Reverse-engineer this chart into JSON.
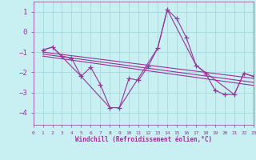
{
  "background_color": "#c8eff1",
  "grid_color": "#a0dce0",
  "line_color": "#993399",
  "xlim": [
    0,
    23
  ],
  "ylim": [
    -4.6,
    1.5
  ],
  "yticks": [
    -4,
    -3,
    -2,
    -1,
    0,
    1
  ],
  "xticks": [
    0,
    1,
    2,
    3,
    4,
    5,
    6,
    7,
    8,
    9,
    10,
    11,
    12,
    13,
    14,
    15,
    16,
    17,
    18,
    19,
    20,
    21,
    22,
    23
  ],
  "xlabel": "Windchill (Refroidissement éolien,°C)",
  "main_x": [
    1,
    2,
    3,
    4,
    5,
    6,
    7,
    8,
    9,
    10,
    11,
    12,
    13,
    14,
    15,
    16,
    17,
    18,
    19,
    20,
    21,
    22,
    23
  ],
  "main_y": [
    -0.9,
    -0.75,
    -1.2,
    -1.3,
    -2.2,
    -1.75,
    -2.6,
    -3.75,
    -3.75,
    -2.3,
    -2.4,
    -1.7,
    -0.8,
    1.1,
    0.65,
    -0.3,
    -1.65,
    -2.05,
    -2.9,
    -3.1,
    -3.1,
    -2.05,
    -2.2
  ],
  "seg_x": [
    1,
    2,
    5,
    8,
    9,
    13,
    14,
    17,
    21,
    22,
    23
  ],
  "seg_y": [
    -0.9,
    -0.75,
    -2.2,
    -3.75,
    -3.75,
    -0.8,
    1.1,
    -1.65,
    -3.1,
    -2.05,
    -2.2
  ],
  "trend1_x": [
    1,
    23
  ],
  "trend1_y": [
    -1.0,
    -2.3
  ],
  "trend2_x": [
    1,
    23
  ],
  "trend2_y": [
    -1.1,
    -2.5
  ],
  "trend3_x": [
    1,
    23
  ],
  "trend3_y": [
    -1.2,
    -2.65
  ]
}
